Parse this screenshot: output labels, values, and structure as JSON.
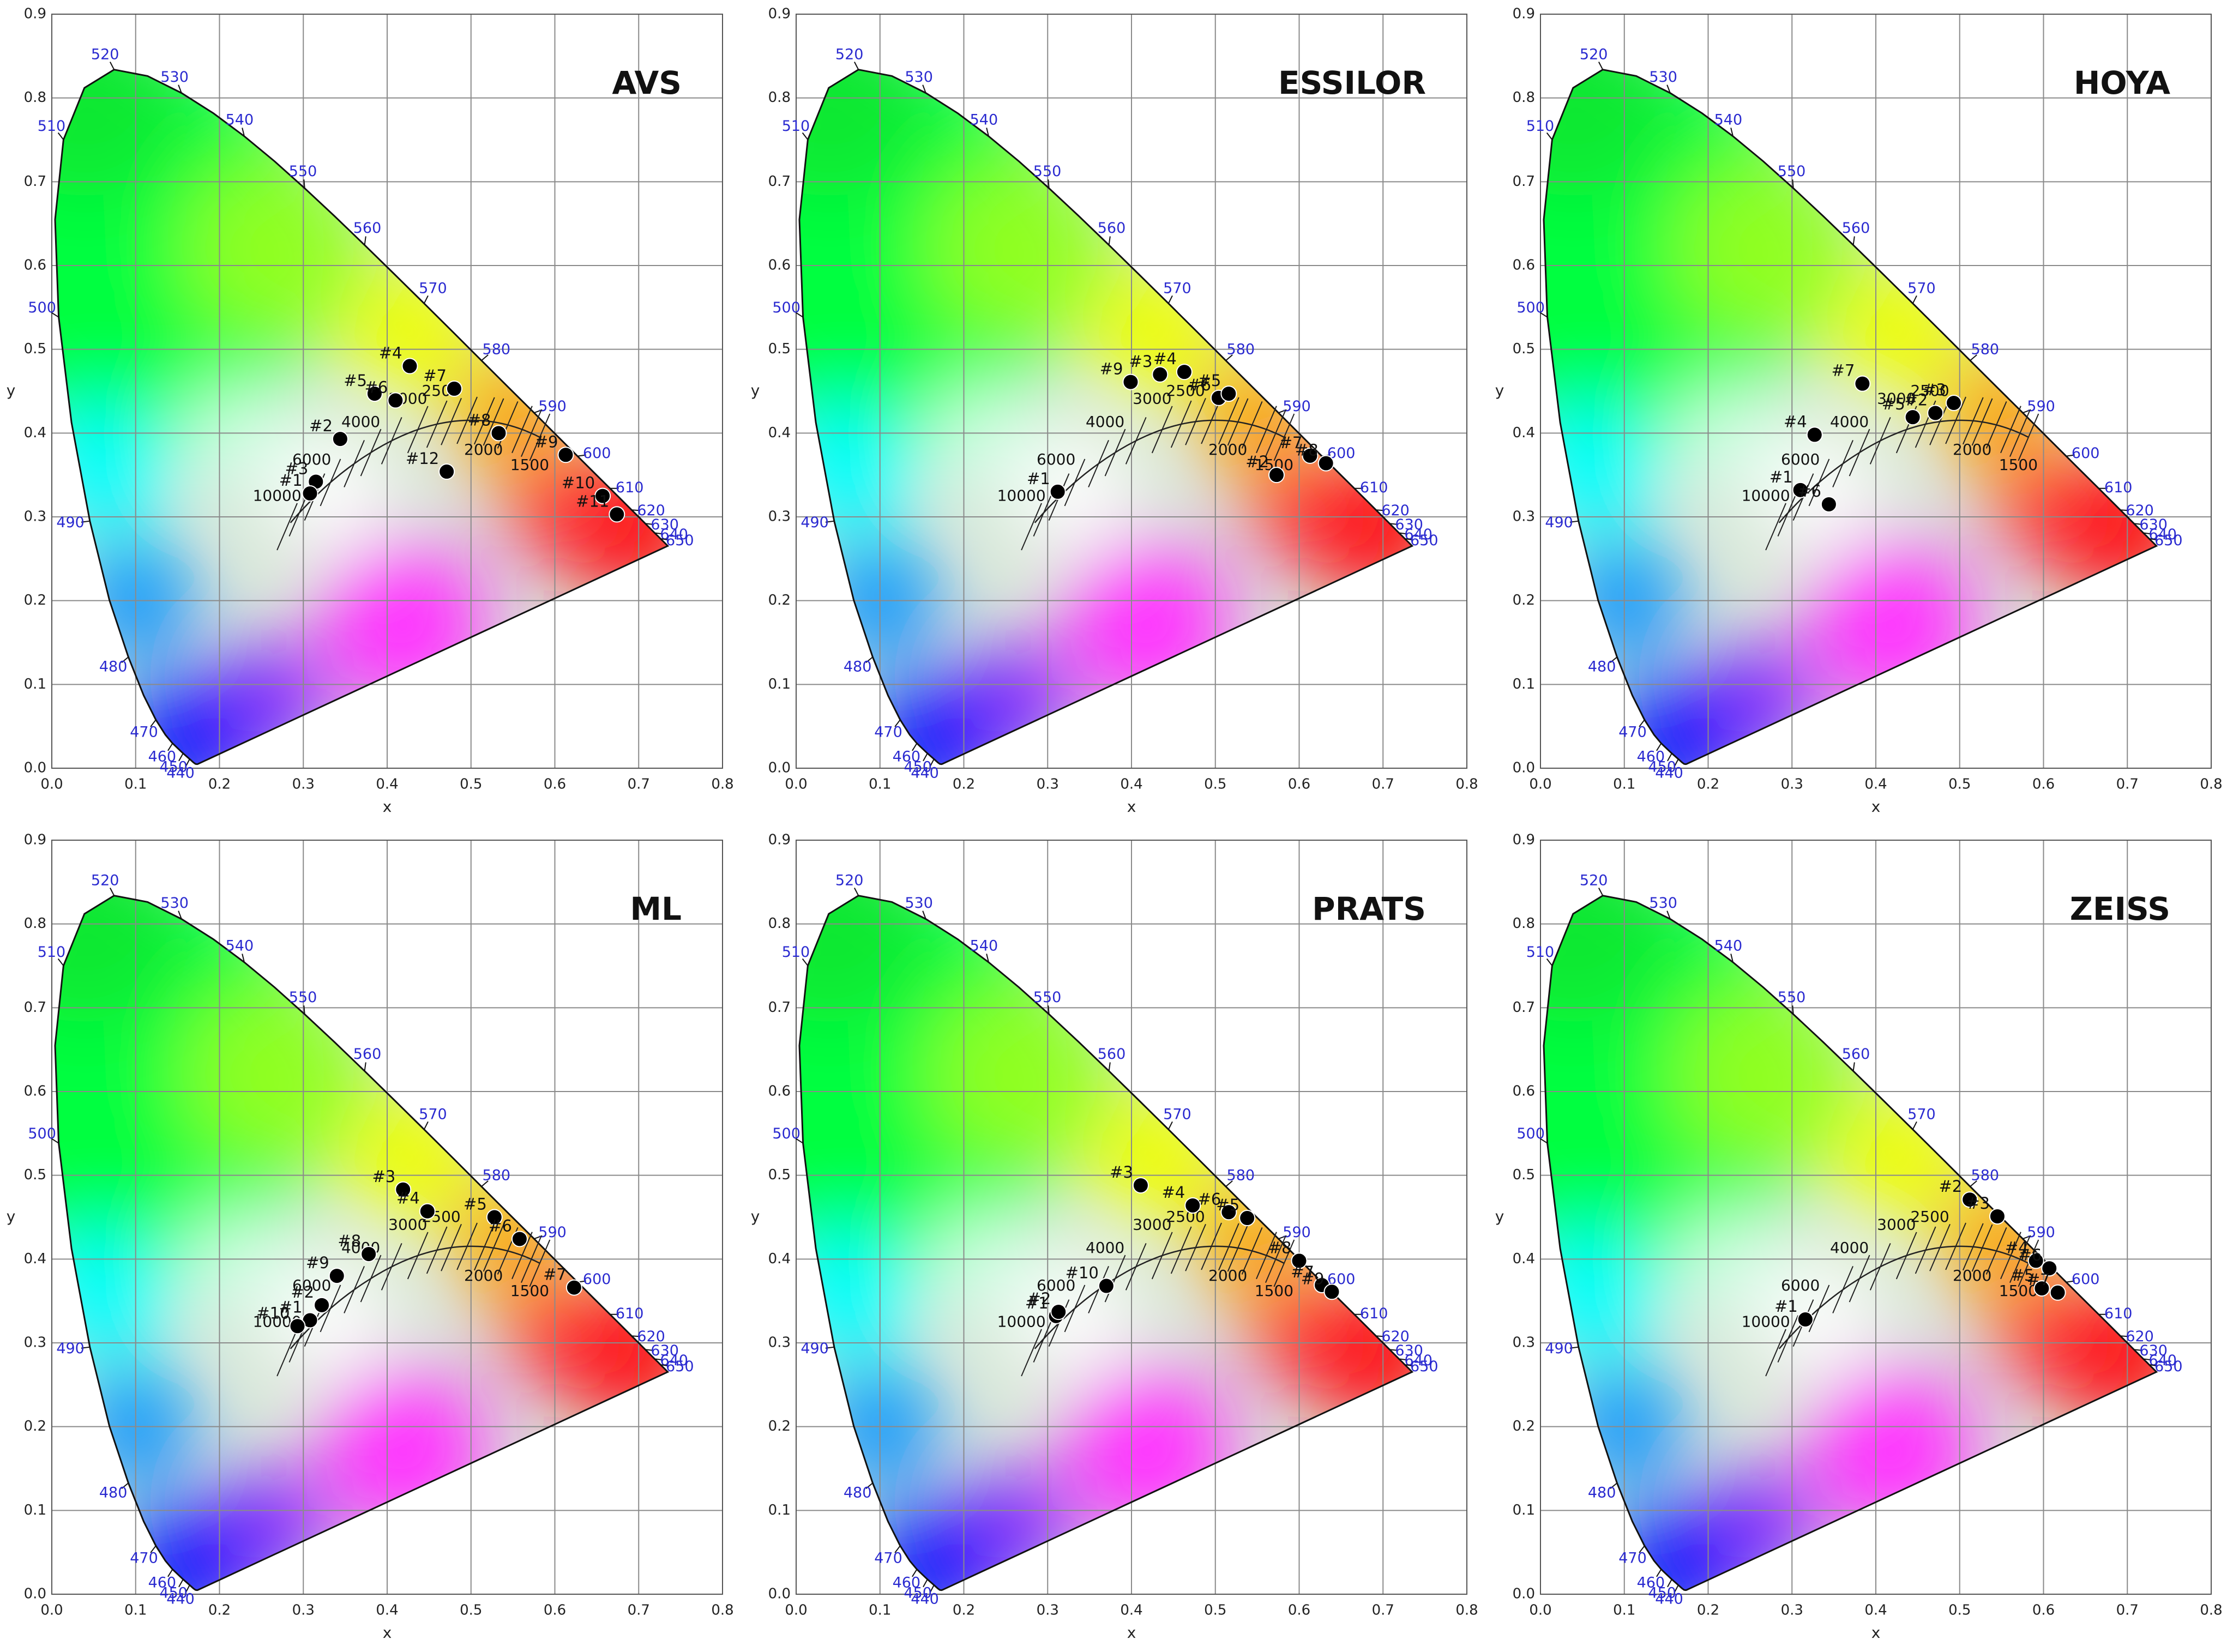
{
  "chart_data": [
    {
      "type": "scatter",
      "title": "AVS",
      "xlabel": "x",
      "ylabel": "y",
      "xlim": [
        0,
        0.8
      ],
      "ylim": [
        0,
        0.9
      ],
      "xticks": [
        {
          "value": 0,
          "label": "0.0"
        },
        0.1,
        0.2,
        0.3,
        0.4,
        0.5,
        0.6,
        0.7,
        0.8
      ],
      "yticks": [
        {
          "value": 0,
          "label": "0.0"
        },
        0.1,
        0.2,
        0.3,
        0.4,
        0.5,
        0.6,
        0.7,
        0.8,
        0.9
      ],
      "grid": true,
      "color": "#000000",
      "wavelength_labels": [
        440,
        450,
        460,
        470,
        480,
        490,
        500,
        510,
        520,
        530,
        540,
        550,
        560,
        570,
        580,
        590,
        600,
        610,
        620,
        630,
        640,
        650
      ],
      "cct_labels": [
        10000,
        6000,
        4000,
        3000,
        2500,
        2000,
        1500
      ],
      "point_labels": [
        "#4",
        "#5",
        "#6",
        "#7",
        "#8",
        "#2",
        "#3",
        "#1",
        "#12",
        "#9",
        "#10",
        "#11"
      ],
      "x": [
        0.427,
        0.385,
        0.41,
        0.48,
        0.533,
        0.344,
        0.315,
        0.308,
        0.471,
        0.613,
        0.657,
        0.674
      ],
      "values": [
        0.48,
        0.447,
        0.439,
        0.453,
        0.4,
        0.393,
        0.342,
        0.328,
        0.354,
        0.374,
        0.325,
        0.303
      ]
    },
    {
      "type": "scatter",
      "title": "ESSILOR",
      "xlabel": "x",
      "ylabel": "y",
      "xlim": [
        0,
        0.8
      ],
      "ylim": [
        0,
        0.9
      ],
      "xticks": [
        {
          "value": 0,
          "label": "0.0"
        },
        0.1,
        0.2,
        0.3,
        0.4,
        0.5,
        0.6,
        0.7,
        0.8
      ],
      "yticks": [
        {
          "value": 0,
          "label": "0.0"
        },
        0.1,
        0.2,
        0.3,
        0.4,
        0.5,
        0.6,
        0.7,
        0.8,
        0.9
      ],
      "grid": true,
      "color": "#000000",
      "wavelength_labels": [
        440,
        450,
        460,
        470,
        480,
        490,
        500,
        510,
        520,
        530,
        540,
        550,
        560,
        570,
        580,
        590,
        600,
        610,
        620,
        630,
        640,
        650
      ],
      "cct_labels": [
        10000,
        6000,
        4000,
        3000,
        2500,
        2000,
        1500
      ],
      "point_labels": [
        "#9",
        "#3",
        "#4",
        "#6",
        "#5",
        "#1",
        "#2",
        "#7",
        "#8"
      ],
      "x": [
        0.399,
        0.434,
        0.463,
        0.504,
        0.516,
        0.312,
        0.573,
        0.613,
        0.632
      ],
      "values": [
        0.461,
        0.47,
        0.473,
        0.442,
        0.447,
        0.33,
        0.35,
        0.373,
        0.364
      ]
    },
    {
      "type": "scatter",
      "title": "HOYA",
      "xlabel": "x",
      "ylabel": "y",
      "xlim": [
        0,
        0.8
      ],
      "ylim": [
        0,
        0.9
      ],
      "xticks": [
        {
          "value": 0,
          "label": "0.0"
        },
        0.1,
        0.2,
        0.3,
        0.4,
        0.5,
        0.6,
        0.7,
        0.8
      ],
      "yticks": [
        {
          "value": 0,
          "label": "0.0"
        },
        0.1,
        0.2,
        0.3,
        0.4,
        0.5,
        0.6,
        0.7,
        0.8,
        0.9
      ],
      "grid": true,
      "color": "#000000",
      "wavelength_labels": [
        440,
        450,
        460,
        470,
        480,
        490,
        500,
        510,
        520,
        530,
        540,
        550,
        560,
        570,
        580,
        590,
        600,
        610,
        620,
        630,
        640,
        650
      ],
      "cct_labels": [
        10000,
        6000,
        4000,
        3000,
        2500,
        2000,
        1500
      ],
      "point_labels": [
        "#7",
        "#5",
        "#2",
        "#3",
        "#4",
        "#1",
        "#6"
      ],
      "x": [
        0.384,
        0.444,
        0.471,
        0.493,
        0.327,
        0.31,
        0.344
      ],
      "values": [
        0.459,
        0.419,
        0.424,
        0.436,
        0.398,
        0.332,
        0.315
      ]
    },
    {
      "type": "scatter",
      "title": "ML",
      "xlabel": "x",
      "ylabel": "y",
      "xlim": [
        0,
        0.8
      ],
      "ylim": [
        0,
        0.9
      ],
      "xticks": [
        {
          "value": 0,
          "label": "0.0"
        },
        0.1,
        0.2,
        0.3,
        0.4,
        0.5,
        0.6,
        0.7,
        0.8
      ],
      "yticks": [
        {
          "value": 0,
          "label": "0.0"
        },
        0.1,
        0.2,
        0.3,
        0.4,
        0.5,
        0.6,
        0.7,
        0.8,
        0.9
      ],
      "grid": true,
      "color": "#000000",
      "wavelength_labels": [
        440,
        450,
        460,
        470,
        480,
        490,
        500,
        510,
        520,
        530,
        540,
        550,
        560,
        570,
        580,
        590,
        600,
        610,
        620,
        630,
        640,
        650
      ],
      "cct_labels": [
        10000,
        6000,
        4000,
        3000,
        2500,
        2000,
        1500
      ],
      "point_labels": [
        "#3",
        "#4",
        "#5",
        "#6",
        "#7",
        "#8",
        "#9",
        "#2",
        "#1",
        "#10"
      ],
      "x": [
        0.419,
        0.448,
        0.528,
        0.558,
        0.623,
        0.378,
        0.34,
        0.322,
        0.308,
        0.293
      ],
      "values": [
        0.483,
        0.457,
        0.45,
        0.424,
        0.366,
        0.406,
        0.38,
        0.345,
        0.327,
        0.32
      ]
    },
    {
      "type": "scatter",
      "title": "PRATS",
      "xlabel": "x",
      "ylabel": "y",
      "xlim": [
        0,
        0.8
      ],
      "ylim": [
        0,
        0.9
      ],
      "xticks": [
        {
          "value": 0,
          "label": "0.0"
        },
        0.1,
        0.2,
        0.3,
        0.4,
        0.5,
        0.6,
        0.7,
        0.8
      ],
      "yticks": [
        {
          "value": 0,
          "label": "0.0"
        },
        0.1,
        0.2,
        0.3,
        0.4,
        0.5,
        0.6,
        0.7,
        0.8,
        0.9
      ],
      "grid": true,
      "color": "#000000",
      "wavelength_labels": [
        440,
        450,
        460,
        470,
        480,
        490,
        500,
        510,
        520,
        530,
        540,
        550,
        560,
        570,
        580,
        590,
        600,
        610,
        620,
        630,
        640,
        650
      ],
      "cct_labels": [
        10000,
        6000,
        4000,
        3000,
        2500,
        2000,
        1500
      ],
      "point_labels": [
        "#3",
        "#4",
        "#6",
        "#5",
        "#8",
        "#7",
        "#9",
        "#10",
        "#1",
        "#2"
      ],
      "x": [
        0.411,
        0.473,
        0.516,
        0.538,
        0.6,
        0.627,
        0.639,
        0.37,
        0.31,
        0.313
      ],
      "values": [
        0.488,
        0.464,
        0.456,
        0.449,
        0.398,
        0.369,
        0.361,
        0.368,
        0.332,
        0.337
      ]
    },
    {
      "type": "scatter",
      "title": "ZEISS",
      "xlabel": "x",
      "ylabel": "y",
      "xlim": [
        0,
        0.8
      ],
      "ylim": [
        0,
        0.9
      ],
      "xticks": [
        {
          "value": 0,
          "label": "0.0"
        },
        0.1,
        0.2,
        0.3,
        0.4,
        0.5,
        0.6,
        0.7,
        0.8
      ],
      "yticks": [
        {
          "value": 0,
          "label": "0.0"
        },
        0.1,
        0.2,
        0.3,
        0.4,
        0.5,
        0.6,
        0.7,
        0.8,
        0.9
      ],
      "grid": true,
      "color": "#000000",
      "wavelength_labels": [
        440,
        450,
        460,
        470,
        480,
        490,
        500,
        510,
        520,
        530,
        540,
        550,
        560,
        570,
        580,
        590,
        600,
        610,
        620,
        630,
        640,
        650
      ],
      "cct_labels": [
        10000,
        6000,
        4000,
        3000,
        2500,
        2000,
        1500
      ],
      "point_labels": [
        "#2",
        "#3",
        "#4",
        "#6",
        "#5",
        "#7",
        "#1"
      ],
      "x": [
        0.512,
        0.545,
        0.591,
        0.607,
        0.598,
        0.617,
        0.316
      ],
      "values": [
        0.471,
        0.451,
        0.398,
        0.389,
        0.365,
        0.36,
        0.328
      ]
    }
  ]
}
